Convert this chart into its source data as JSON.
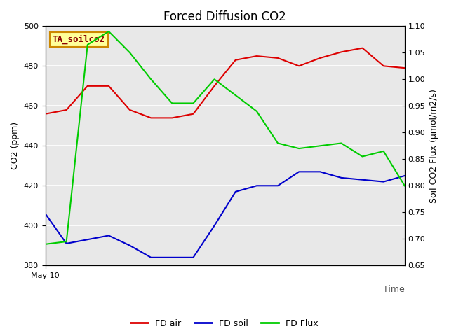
{
  "title": "Forced Diffusion CO2",
  "xlabel": "Time",
  "ylabel_left": "CO2 (ppm)",
  "ylabel_right": "Soil CO2 Flux (μmol/m2/s)",
  "annotation": "TA_soilco2",
  "x_label_start": "May 10",
  "ylim_left": [
    380,
    500
  ],
  "ylim_right": [
    0.65,
    1.1
  ],
  "background_color": "#e8e8e8",
  "fd_air": [
    456,
    458,
    470,
    470,
    458,
    454,
    454,
    456,
    470,
    483,
    485,
    484,
    480,
    484,
    487,
    489,
    480,
    479
  ],
  "fd_soil": [
    406,
    391,
    393,
    395,
    390,
    384,
    384,
    384,
    400,
    417,
    420,
    420,
    427,
    427,
    424,
    423,
    422,
    425
  ],
  "fd_flux": [
    0.69,
    0.695,
    1.065,
    1.09,
    1.05,
    1.0,
    0.955,
    0.955,
    1.0,
    0.97,
    0.94,
    0.88,
    0.87,
    0.875,
    0.88,
    0.855,
    0.865,
    0.8
  ],
  "n_points": 18,
  "color_air": "#dd0000",
  "color_soil": "#0000cc",
  "color_flux": "#00cc00",
  "legend_labels": [
    "FD air",
    "FD soil",
    "FD Flux"
  ],
  "title_fontsize": 12,
  "label_fontsize": 9,
  "annotation_fontsize": 9,
  "yticks_left": [
    380,
    400,
    420,
    440,
    460,
    480,
    500
  ],
  "yticks_right": [
    0.65,
    0.7,
    0.75,
    0.8,
    0.85,
    0.9,
    0.95,
    1.0,
    1.05,
    1.1
  ],
  "fig_bg": "#ffffff"
}
